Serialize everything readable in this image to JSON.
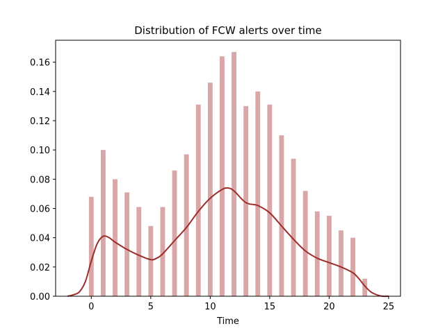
{
  "chart_data": {
    "type": "bar",
    "title": "Distribution of FCW alerts over time",
    "xlabel": "Time",
    "ylabel": "",
    "xlim": [
      -3,
      26
    ],
    "ylim": [
      0,
      0.175
    ],
    "xticks": [
      0,
      5,
      10,
      15,
      20,
      25
    ],
    "yticks": [
      0.0,
      0.02,
      0.04,
      0.06,
      0.08,
      0.1,
      0.12,
      0.14,
      0.16
    ],
    "ytick_labels": [
      "0.00",
      "0.02",
      "0.04",
      "0.06",
      "0.08",
      "0.10",
      "0.12",
      "0.14",
      "0.16"
    ],
    "grid": false,
    "bar_color": "#d9a7a7",
    "line_color": "#9b2d2a",
    "bars": {
      "x": [
        0,
        1,
        2,
        3,
        4,
        5,
        6,
        7,
        8,
        9,
        10,
        11,
        12,
        13,
        14,
        15,
        16,
        17,
        18,
        19,
        20,
        21,
        22,
        23
      ],
      "values": [
        0.068,
        0.1,
        0.08,
        0.071,
        0.061,
        0.048,
        0.061,
        0.086,
        0.097,
        0.131,
        0.146,
        0.164,
        0.167,
        0.13,
        0.14,
        0.131,
        0.11,
        0.094,
        0.072,
        0.058,
        0.055,
        0.045,
        0.04,
        0.012
      ]
    },
    "kde": {
      "x": [
        -2,
        -1.5,
        -1,
        -0.5,
        0,
        0.5,
        1,
        1.5,
        2,
        3,
        4,
        5,
        5.5,
        6,
        7,
        8,
        9,
        10,
        11,
        11.5,
        12,
        13,
        14,
        15,
        16,
        17,
        18,
        19,
        20,
        21,
        22,
        22.5,
        23,
        23.5,
        24,
        24.5,
        25
      ],
      "y": [
        0.0,
        0.001,
        0.003,
        0.01,
        0.024,
        0.036,
        0.041,
        0.04,
        0.037,
        0.032,
        0.028,
        0.025,
        0.026,
        0.029,
        0.038,
        0.047,
        0.058,
        0.067,
        0.073,
        0.074,
        0.072,
        0.064,
        0.062,
        0.057,
        0.048,
        0.039,
        0.031,
        0.026,
        0.023,
        0.02,
        0.016,
        0.012,
        0.007,
        0.003,
        0.001,
        0.0,
        0.0
      ]
    }
  }
}
